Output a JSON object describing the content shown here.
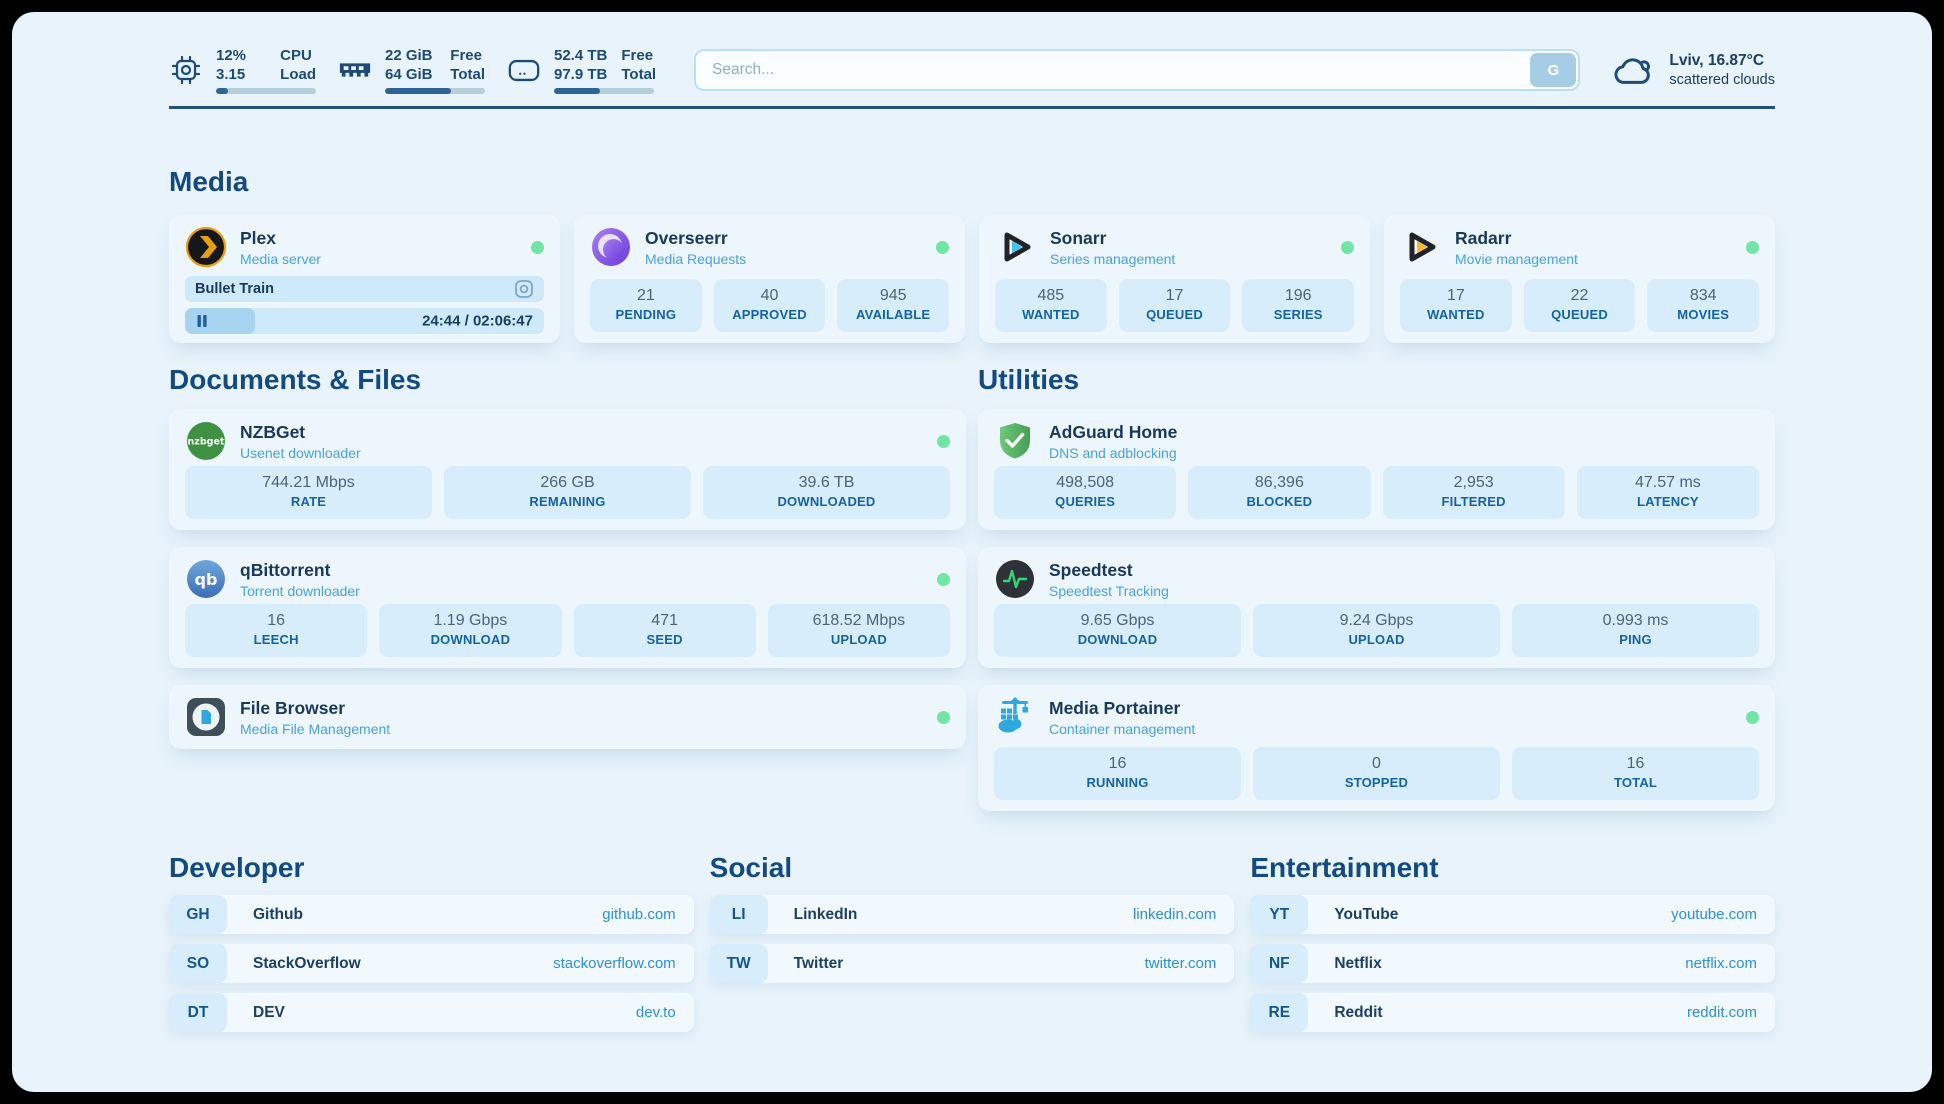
{
  "topbar": {
    "cpu": {
      "value": "12%",
      "value2": "3.15",
      "label1": "CPU",
      "label2": "Load",
      "progress_pct": 12
    },
    "ram": {
      "value": "22 GiB",
      "value2": "64 GiB",
      "label1": "Free",
      "label2": "Total",
      "progress_pct": 66
    },
    "disk": {
      "value": "52.4 TB",
      "value2": "97.9 TB",
      "label1": "Free",
      "label2": "Total",
      "progress_pct": 46
    },
    "search": {
      "placeholder": "Search...",
      "button": "G"
    },
    "weather": {
      "headline": "Lviv, 16.87°C",
      "condition": "scattered clouds"
    }
  },
  "media": {
    "title": "Media",
    "cards": [
      {
        "title": "Plex",
        "subtitle": "Media server",
        "online": true,
        "player": {
          "item": "Bullet Train",
          "time": "24:44 / 02:06:47",
          "progress_pct": 19.5
        }
      },
      {
        "title": "Overseerr",
        "subtitle": "Media Requests",
        "online": true,
        "stats": [
          {
            "value": "21",
            "label": "PENDING"
          },
          {
            "value": "40",
            "label": "APPROVED"
          },
          {
            "value": "945",
            "label": "AVAILABLE"
          }
        ]
      },
      {
        "title": "Sonarr",
        "subtitle": "Series management",
        "online": true,
        "stats": [
          {
            "value": "485",
            "label": "WANTED"
          },
          {
            "value": "17",
            "label": "QUEUED"
          },
          {
            "value": "196",
            "label": "SERIES"
          }
        ]
      },
      {
        "title": "Radarr",
        "subtitle": "Movie management",
        "online": true,
        "stats": [
          {
            "value": "17",
            "label": "WANTED"
          },
          {
            "value": "22",
            "label": "QUEUED"
          },
          {
            "value": "834",
            "label": "MOVIES"
          }
        ]
      }
    ]
  },
  "documents": {
    "title": "Documents & Files",
    "cards": [
      {
        "title": "NZBGet",
        "subtitle": "Usenet downloader",
        "online": true,
        "stats": [
          {
            "value": "744.21 Mbps",
            "label": "RATE"
          },
          {
            "value": "266 GB",
            "label": "REMAINING"
          },
          {
            "value": "39.6 TB",
            "label": "DOWNLOADED"
          }
        ]
      },
      {
        "title": "qBittorrent",
        "subtitle": "Torrent downloader",
        "online": true,
        "stats": [
          {
            "value": "16",
            "label": "LEECH"
          },
          {
            "value": "1.19 Gbps",
            "label": "DOWNLOAD"
          },
          {
            "value": "471",
            "label": "SEED"
          },
          {
            "value": "618.52 Mbps",
            "label": "UPLOAD"
          }
        ]
      },
      {
        "title": "File Browser",
        "subtitle": "Media File Management",
        "online": true
      }
    ]
  },
  "utilities": {
    "title": "Utilities",
    "cards": [
      {
        "title": "AdGuard Home",
        "subtitle": "DNS and adblocking",
        "online": false,
        "stats": [
          {
            "value": "498,508",
            "label": "QUERIES"
          },
          {
            "value": "86,396",
            "label": "BLOCKED"
          },
          {
            "value": "2,953",
            "label": "FILTERED"
          },
          {
            "value": "47.57 ms",
            "label": "LATENCY"
          }
        ]
      },
      {
        "title": "Speedtest",
        "subtitle": "Speedtest Tracking",
        "online": false,
        "stats": [
          {
            "value": "9.65 Gbps",
            "label": "DOWNLOAD"
          },
          {
            "value": "9.24 Gbps",
            "label": "UPLOAD"
          },
          {
            "value": "0.993 ms",
            "label": "PING"
          }
        ]
      },
      {
        "title": "Media Portainer",
        "subtitle": "Container management",
        "online": true,
        "stats": [
          {
            "value": "16",
            "label": "RUNNING"
          },
          {
            "value": "0",
            "label": "STOPPED"
          },
          {
            "value": "16",
            "label": "TOTAL"
          }
        ]
      }
    ]
  },
  "link_sections": [
    {
      "title": "Developer",
      "items": [
        {
          "badge": "GH",
          "name": "Github",
          "url": "github.com"
        },
        {
          "badge": "SO",
          "name": "StackOverflow",
          "url": "stackoverflow.com"
        },
        {
          "badge": "DT",
          "name": "DEV",
          "url": "dev.to"
        }
      ]
    },
    {
      "title": "Social",
      "items": [
        {
          "badge": "LI",
          "name": "LinkedIn",
          "url": "linkedin.com"
        },
        {
          "badge": "TW",
          "name": "Twitter",
          "url": "twitter.com"
        }
      ]
    },
    {
      "title": "Entertainment",
      "items": [
        {
          "badge": "YT",
          "name": "YouTube",
          "url": "youtube.com"
        },
        {
          "badge": "NF",
          "name": "Netflix",
          "url": "netflix.com"
        },
        {
          "badge": "RE",
          "name": "Reddit",
          "url": "reddit.com"
        }
      ]
    }
  ],
  "colors": {
    "page_bg": "#e8f3fb",
    "card_bg": "#edf6fd",
    "stat_bg": "#d7edfb",
    "accent_blue": "#2d8fd8",
    "label_blue": "#1463a8",
    "title_navy": "#18395c",
    "subtitle_blue": "#47a2e2",
    "online_green": "#70e5a4",
    "divider_navy": "#24507b"
  },
  "icons": {
    "cpu": "chip outline",
    "ram": "memory stick",
    "disk": "hard drive",
    "search_submit": "G",
    "weather": "cloud outline",
    "plex": "amber chevron in dark circle",
    "overseerr": "purple swirl circle",
    "sonarr": "cyan play triangle",
    "radarr": "amber play triangle",
    "nzbget": "green circle wordmark",
    "qbittorrent": "blue circle qb",
    "filebrowser": "file in circle on dark square",
    "adguard": "green shield with check",
    "speedtest": "pulse line in dark circle",
    "portainer": "blue crane and containers",
    "plex_media": "disc thumbnail",
    "plex_player": "pause bars",
    "status": "green dot"
  }
}
